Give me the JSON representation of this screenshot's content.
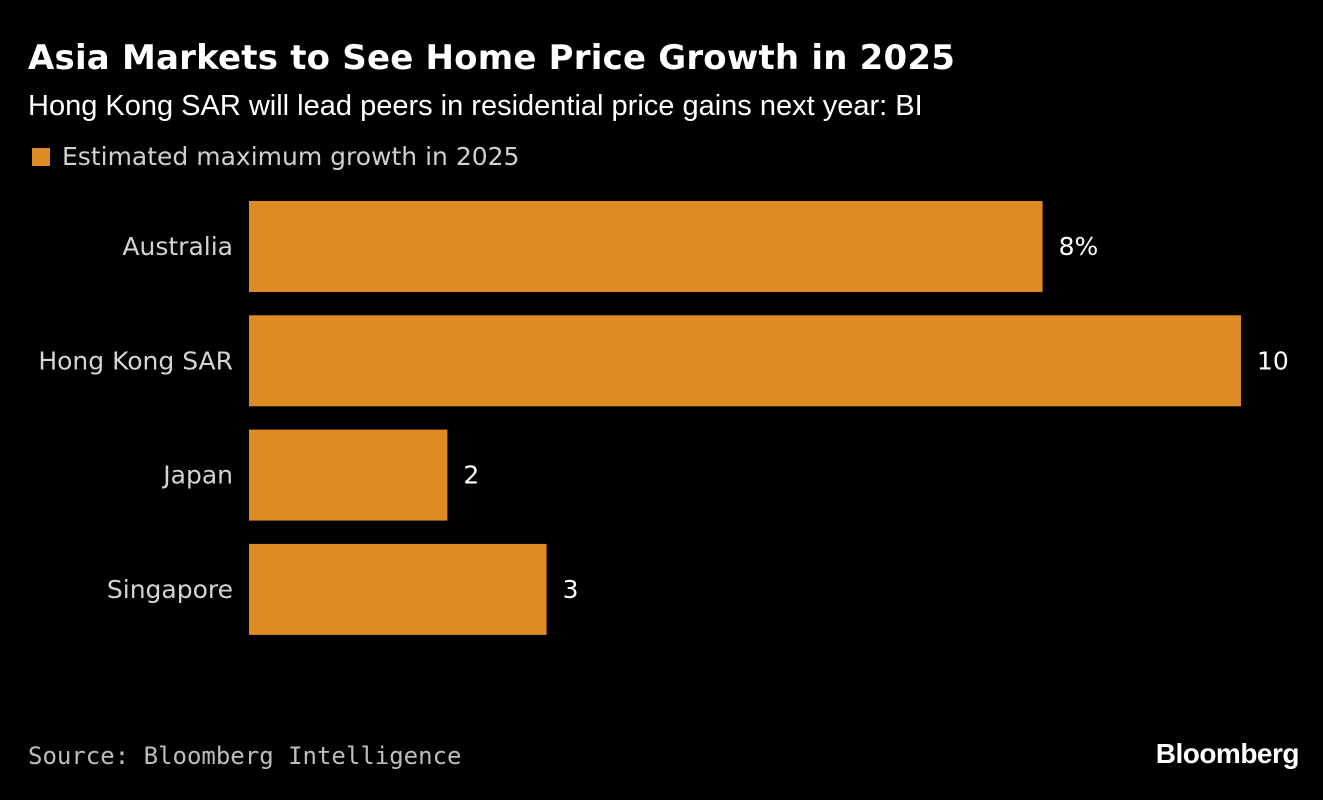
{
  "chart_data": {
    "type": "bar",
    "orientation": "horizontal",
    "title": "Asia Markets to See Home Price Growth in 2025",
    "subtitle": "Hong Kong SAR will lead peers in residential price gains next year: BI",
    "categories": [
      "Australia",
      "Hong Kong SAR",
      "Japan",
      "Singapore"
    ],
    "series": [
      {
        "name": "Estimated maximum growth in 2025",
        "values": [
          8,
          10,
          2,
          3
        ],
        "color": "#de8a25"
      }
    ],
    "value_labels": [
      "8%",
      "10",
      "2",
      "3"
    ],
    "xlim": [
      0,
      10
    ],
    "grid": false,
    "legend": "top-left",
    "source": "Source: Bloomberg Intelligence"
  },
  "brand": "Bloomberg",
  "colors": {
    "background": "#000000",
    "bar": "#de8a25"
  }
}
